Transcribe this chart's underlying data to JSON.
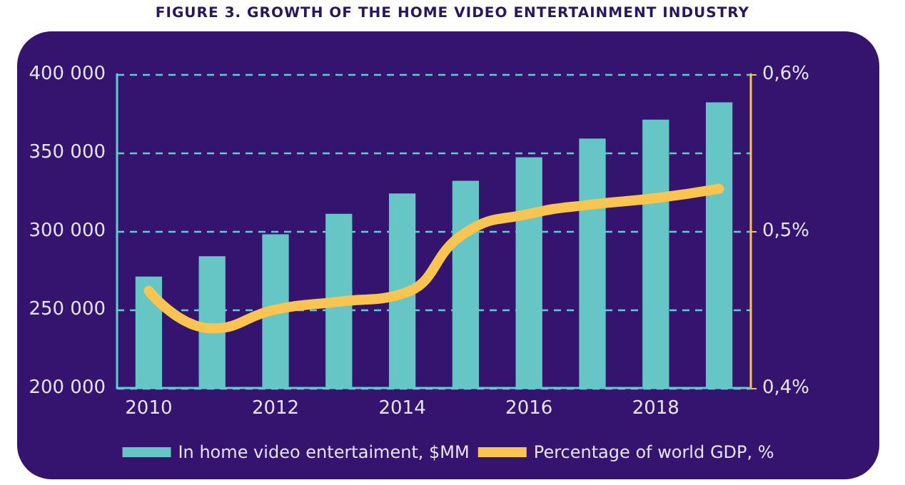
{
  "chart_data": {
    "type": "bar",
    "title": "FIGURE 3. GROWTH OF THE HOME VIDEO ENTERTAINMENT INDUSTRY",
    "categories": [
      "2010",
      null,
      "2012",
      null,
      "2014",
      null,
      "2016",
      null,
      "2018",
      null
    ],
    "series": [
      {
        "name": "In home video entertaiment, $MM",
        "color": "#66c6c6",
        "values": [
          271000,
          284000,
          298000,
          311000,
          324000,
          332000,
          347000,
          359000,
          371000,
          382000
        ]
      },
      {
        "name": "Percentage of world GDP, %",
        "type": "line",
        "axis": "y2",
        "color": "#f9c54e",
        "values": [
          0.462,
          0.438,
          0.45,
          0.455,
          0.46,
          0.499,
          0.511,
          0.517,
          0.521,
          0.527
        ]
      }
    ],
    "ylim": [
      200000,
      400000
    ],
    "yticks": [
      {
        "value": 200000,
        "label": "200 000"
      },
      {
        "value": 250000,
        "label": "250 000"
      },
      {
        "value": 300000,
        "label": "300 000"
      },
      {
        "value": 350000,
        "label": "350 000"
      },
      {
        "value": 400000,
        "label": "400 000"
      }
    ],
    "y2lim": [
      0.4,
      0.6
    ],
    "y2ticks": [
      {
        "value": 0.4,
        "label": "0,4%"
      },
      {
        "value": 0.5,
        "label": "0,5%"
      },
      {
        "value": 0.6,
        "label": "0,6%"
      }
    ],
    "grid": "y",
    "legend": "bottom",
    "line_style": "solid"
  }
}
